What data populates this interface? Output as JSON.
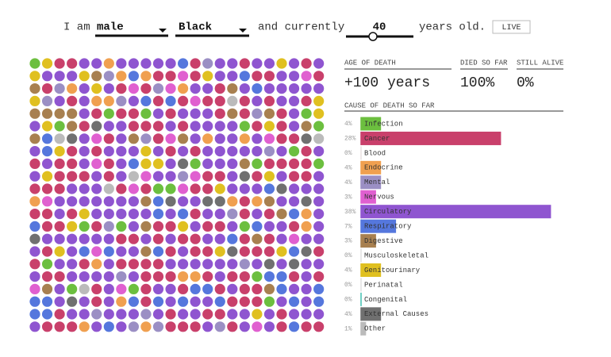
{
  "header": {
    "prefix": "I am",
    "sex": "male",
    "race": "Black",
    "middle": "and currently",
    "age": "40",
    "suffix": "years old.",
    "button": "LIVE"
  },
  "stats": {
    "age_of_death_label": "AGE OF DEATH",
    "age_of_death": "+100 years",
    "died_label": "DIED SO FAR",
    "died": "100%",
    "alive_label": "STILL ALIVE",
    "alive": "0%"
  },
  "chart_data": {
    "type": "bar",
    "title": "CAUSE OF DEATH SO FAR",
    "categories": [
      "Infection",
      "Cancer",
      "Blood",
      "Endocrine",
      "Mental",
      "Nervous",
      "Circulatory",
      "Respiratory",
      "Digestive",
      "Musculoskeletal",
      "Genitourinary",
      "Perinatal",
      "Congenital",
      "External Causes",
      "Other"
    ],
    "values": [
      4,
      28,
      0,
      4,
      4,
      3,
      38,
      7,
      3,
      0,
      4,
      0,
      0,
      4,
      1
    ],
    "value_labels": [
      "4%",
      "28%",
      "0%",
      "4%",
      "4%",
      "3%",
      "38%",
      "7%",
      "3%",
      "0%",
      "4%",
      "0%",
      "0%",
      "4%",
      "1%"
    ],
    "colors": [
      "#6cbf3f",
      "#c9406b",
      "#e8e0e0",
      "#f0a050",
      "#9b8fc4",
      "#e060d0",
      "#8f55d0",
      "#5577dd",
      "#a88050",
      "#e0e0e0",
      "#e0c020",
      "#e0e0e0",
      "#40c0b0",
      "#707070",
      "#bbbbbb"
    ]
  }
}
